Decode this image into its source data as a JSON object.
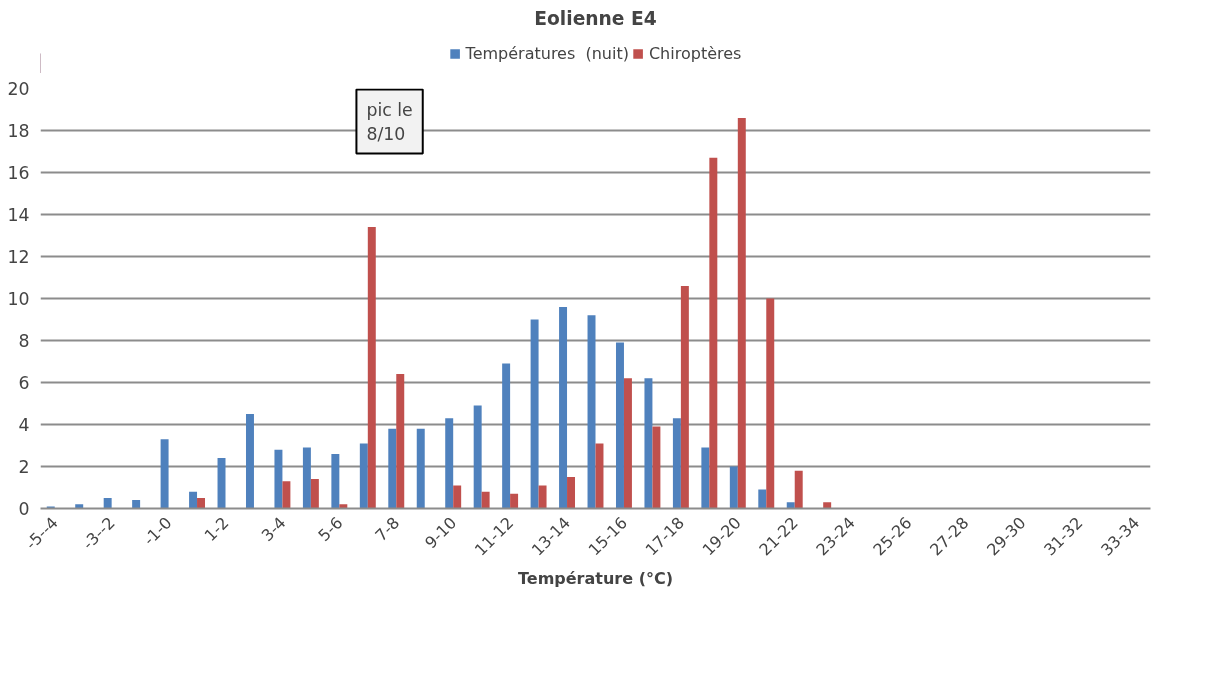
{
  "chart_data": {
    "type": "bar",
    "title": "Eolienne E4",
    "xlabel": "Température (°C)",
    "categories": [
      "-5--4",
      null,
      "-3--2",
      null,
      "-1-0",
      null,
      "1-2",
      null,
      "3-4",
      null,
      "5-6",
      null,
      "7-8",
      null,
      "9-10",
      null,
      "11-12",
      null,
      "13-14",
      null,
      "15-16",
      null,
      "17-18",
      null,
      "19-20",
      null,
      "21-22",
      null,
      "23-24",
      null,
      "25-26",
      null,
      "27-28",
      null,
      "29-30",
      null,
      "31-32",
      null,
      "33-34"
    ],
    "series": [
      {
        "name": "Températures  (nuit)",
        "color": "#4f81bd",
        "values": [
          0.1,
          0.2,
          0.5,
          0.4,
          3.3,
          0.8,
          2.4,
          4.5,
          2.8,
          2.9,
          2.6,
          3.1,
          3.8,
          3.8,
          4.3,
          4.9,
          6.9,
          9.0,
          9.6,
          9.2,
          7.9,
          6.2,
          4.3,
          2.9,
          2.0,
          0.9,
          0.3,
          0,
          0,
          0,
          0,
          0,
          0,
          0,
          0,
          0,
          0,
          0,
          0
        ]
      },
      {
        "name": "Chiroptères",
        "color": "#c0504d",
        "values": [
          0,
          0,
          0,
          0,
          0,
          0.5,
          0,
          0,
          1.3,
          1.4,
          0.2,
          13.4,
          6.4,
          0,
          1.1,
          0.8,
          0.7,
          1.1,
          1.5,
          3.1,
          6.2,
          3.9,
          10.6,
          16.7,
          18.6,
          10.0,
          1.8,
          0.3,
          0,
          0,
          0,
          0,
          0,
          0,
          0,
          0,
          0,
          0,
          0
        ]
      }
    ],
    "ylim": [
      0,
      20
    ],
    "yticks": [
      0,
      2,
      4,
      6,
      8,
      10,
      12,
      14,
      16,
      18,
      20
    ],
    "grid": "y",
    "legend": "top",
    "annotations": [
      "pic le\n8/10"
    ]
  }
}
